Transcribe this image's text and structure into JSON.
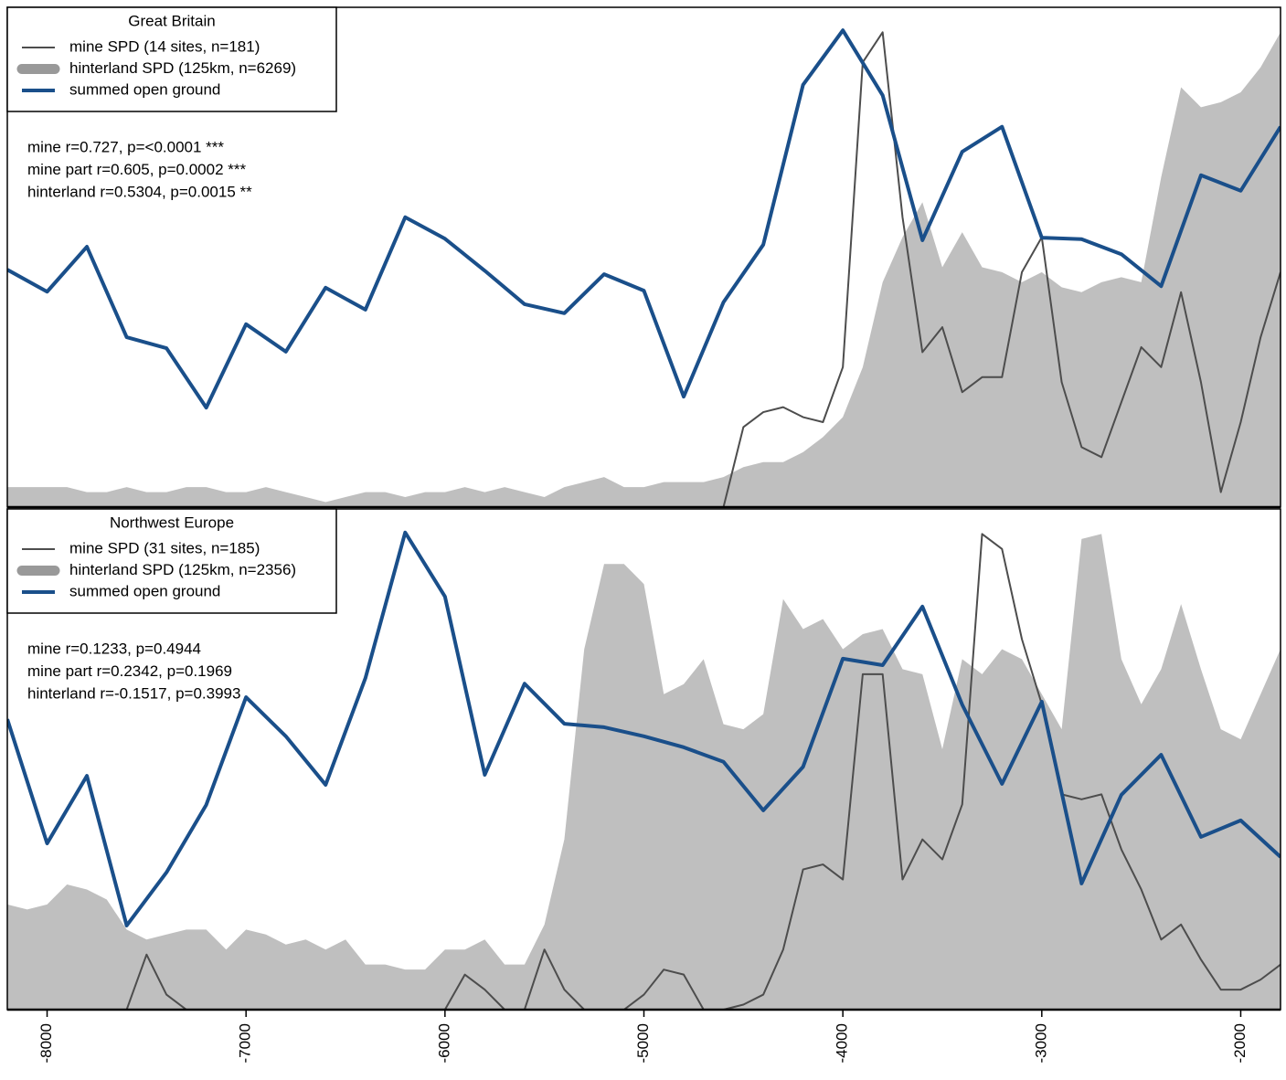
{
  "chart_data": [
    {
      "type": "line",
      "title": "Great Britain",
      "x": [
        -8200,
        -8100,
        -8000,
        -7900,
        -7800,
        -7700,
        -7600,
        -7500,
        -7400,
        -7300,
        -7200,
        -7100,
        -7000,
        -6900,
        -6800,
        -6700,
        -6600,
        -6500,
        -6400,
        -6300,
        -6200,
        -6100,
        -6000,
        -5900,
        -5800,
        -5700,
        -5600,
        -5500,
        -5400,
        -5300,
        -5200,
        -5100,
        -5000,
        -4900,
        -4800,
        -4700,
        -4600,
        -4500,
        -4400,
        -4300,
        -4200,
        -4100,
        -4000,
        -3900,
        -3800,
        -3700,
        -3600,
        -3500,
        -3400,
        -3300,
        -3200,
        -3100,
        -3000,
        -2900,
        -2800,
        -2700,
        -2600,
        -2500,
        -2400,
        -2300,
        -2200,
        -2100,
        -2000,
        -1900,
        -1800
      ],
      "xlim": [
        -8200,
        -1800
      ],
      "ylim": [
        0,
        1
      ],
      "series": [
        {
          "name": "hinterland SPD (125km, n=6269)",
          "kind": "area",
          "color": "#bfbfbf",
          "legend_color": "#999999",
          "values": [
            0.04,
            0.04,
            0.04,
            0.04,
            0.03,
            0.03,
            0.04,
            0.03,
            0.03,
            0.04,
            0.04,
            0.03,
            0.03,
            0.04,
            0.03,
            0.02,
            0.01,
            0.02,
            0.03,
            0.03,
            0.02,
            0.03,
            0.03,
            0.04,
            0.03,
            0.04,
            0.03,
            0.02,
            0.04,
            0.05,
            0.06,
            0.04,
            0.04,
            0.05,
            0.05,
            0.05,
            0.06,
            0.08,
            0.09,
            0.09,
            0.11,
            0.14,
            0.18,
            0.28,
            0.45,
            0.54,
            0.61,
            0.48,
            0.55,
            0.48,
            0.47,
            0.45,
            0.47,
            0.44,
            0.43,
            0.45,
            0.46,
            0.45,
            0.66,
            0.84,
            0.8,
            0.81,
            0.83,
            0.88,
            0.95
          ]
        },
        {
          "name": "mine SPD (14 sites, n=181)",
          "kind": "line",
          "color": "#4d4d4d",
          "values": [
            0,
            0,
            0,
            0,
            0,
            0,
            0,
            0,
            0,
            0,
            0,
            0,
            0,
            0,
            0,
            0,
            0,
            0,
            0,
            0,
            0,
            0,
            0,
            0,
            0,
            0,
            0,
            0,
            0,
            0,
            0,
            0,
            0,
            0,
            0,
            0,
            0,
            0.16,
            0.19,
            0.2,
            0.18,
            0.17,
            0.28,
            0.89,
            0.95,
            0.58,
            0.31,
            0.36,
            0.23,
            0.26,
            0.26,
            0.47,
            0.54,
            0.25,
            0.12,
            0.1,
            0.21,
            0.32,
            0.28,
            0.43,
            0.25,
            0.03,
            0.17,
            0.34,
            0.47
          ]
        },
        {
          "name": "summed open ground",
          "kind": "bold",
          "color": "#1a4f8a",
          "x": [
            -8200,
            -8000,
            -7800,
            -7600,
            -7400,
            -7200,
            -7000,
            -6800,
            -6600,
            -6400,
            -6200,
            -6000,
            -5800,
            -5600,
            -5400,
            -5200,
            -5000,
            -4800,
            -4600,
            -4400,
            -4200,
            -4000,
            -3800,
            -3600,
            -3400,
            -3200,
            -3000,
            -2800,
            -2600,
            -2400,
            -2200,
            -2000,
            -1800
          ],
          "values": [
            0.475,
            0.431,
            0.521,
            0.34,
            0.318,
            0.199,
            0.366,
            0.311,
            0.439,
            0.395,
            0.58,
            0.537,
            0.473,
            0.406,
            0.388,
            0.466,
            0.433,
            0.221,
            0.41,
            0.525,
            0.845,
            0.954,
            0.824,
            0.534,
            0.711,
            0.761,
            0.539,
            0.536,
            0.506,
            0.442,
            0.664,
            0.633,
            0.761
          ]
        }
      ],
      "legend_order": [
        1,
        0,
        2
      ],
      "annotations": [
        "mine r=0.727, p=<0.0001 ***",
        "mine part r=0.605, p=0.0002 ***",
        "hinterland r=0.5304, p=0.0015 **"
      ]
    },
    {
      "type": "line",
      "title": "Northwest Europe",
      "x": [
        -8200,
        -8100,
        -8000,
        -7900,
        -7800,
        -7700,
        -7600,
        -7500,
        -7400,
        -7300,
        -7200,
        -7100,
        -7000,
        -6900,
        -6800,
        -6700,
        -6600,
        -6500,
        -6400,
        -6300,
        -6200,
        -6100,
        -6000,
        -5900,
        -5800,
        -5700,
        -5600,
        -5500,
        -5400,
        -5300,
        -5200,
        -5100,
        -5000,
        -4900,
        -4800,
        -4700,
        -4600,
        -4500,
        -4400,
        -4300,
        -4200,
        -4100,
        -4000,
        -3900,
        -3800,
        -3700,
        -3600,
        -3500,
        -3400,
        -3300,
        -3200,
        -3100,
        -3000,
        -2900,
        -2800,
        -2700,
        -2600,
        -2500,
        -2400,
        -2300,
        -2200,
        -2100,
        -2000,
        -1900,
        -1800
      ],
      "xlim": [
        -8200,
        -1800
      ],
      "ylim": [
        0,
        1
      ],
      "xticks": [
        -8000,
        -7000,
        -6000,
        -5000,
        -4000,
        -3000,
        -2000
      ],
      "series": [
        {
          "name": "hinterland SPD (125km, n=2356)",
          "kind": "area",
          "color": "#bfbfbf",
          "legend_color": "#999999",
          "values": [
            0.21,
            0.2,
            0.21,
            0.25,
            0.24,
            0.22,
            0.16,
            0.14,
            0.15,
            0.16,
            0.16,
            0.12,
            0.16,
            0.15,
            0.13,
            0.14,
            0.12,
            0.14,
            0.09,
            0.09,
            0.08,
            0.08,
            0.12,
            0.12,
            0.14,
            0.09,
            0.09,
            0.17,
            0.34,
            0.72,
            0.89,
            0.89,
            0.85,
            0.63,
            0.65,
            0.7,
            0.57,
            0.56,
            0.59,
            0.82,
            0.76,
            0.78,
            0.72,
            0.75,
            0.76,
            0.68,
            0.67,
            0.52,
            0.7,
            0.67,
            0.72,
            0.7,
            0.63,
            0.56,
            0.94,
            0.95,
            0.7,
            0.61,
            0.68,
            0.81,
            0.68,
            0.56,
            0.54,
            0.63,
            0.72
          ]
        },
        {
          "name": "mine SPD (31 sites, n=185)",
          "kind": "line",
          "color": "#4d4d4d",
          "values": [
            0,
            0,
            0,
            0,
            0,
            0,
            0,
            0.11,
            0.03,
            0,
            0,
            0,
            0,
            0,
            0,
            0,
            0,
            0,
            0,
            0,
            0,
            0,
            0,
            0.07,
            0.04,
            0,
            0,
            0.12,
            0.04,
            0,
            0,
            0,
            0.03,
            0.08,
            0.07,
            0,
            0,
            0.01,
            0.03,
            0.12,
            0.28,
            0.29,
            0.26,
            0.67,
            0.67,
            0.26,
            0.34,
            0.3,
            0.41,
            0.95,
            0.92,
            0.74,
            0.61,
            0.43,
            0.42,
            0.43,
            0.32,
            0.24,
            0.14,
            0.17,
            0.1,
            0.04,
            0.04,
            0.06,
            0.09
          ]
        },
        {
          "name": "summed open ground",
          "kind": "bold",
          "color": "#1a4f8a",
          "x": [
            -8200,
            -8000,
            -7800,
            -7600,
            -7400,
            -7200,
            -7000,
            -6800,
            -6600,
            -6400,
            -6200,
            -6000,
            -5800,
            -5600,
            -5400,
            -5200,
            -5000,
            -4800,
            -4600,
            -4400,
            -4200,
            -4000,
            -3800,
            -3600,
            -3400,
            -3200,
            -3000,
            -2800,
            -2600,
            -2400,
            -2200,
            -2000,
            -1800
          ],
          "values": [
            0.58,
            0.332,
            0.467,
            0.168,
            0.274,
            0.409,
            0.624,
            0.546,
            0.449,
            0.662,
            0.953,
            0.825,
            0.469,
            0.651,
            0.571,
            0.564,
            0.546,
            0.524,
            0.495,
            0.398,
            0.485,
            0.701,
            0.688,
            0.805,
            0.609,
            0.451,
            0.615,
            0.252,
            0.429,
            0.509,
            0.345,
            0.378,
            0.305
          ]
        }
      ],
      "legend_order": [
        1,
        0,
        2
      ],
      "annotations": [
        "mine r=0.1233, p=0.4944",
        "mine part r=0.2342, p=0.1969",
        "hinterland r=-0.1517, p=0.3993"
      ]
    }
  ]
}
